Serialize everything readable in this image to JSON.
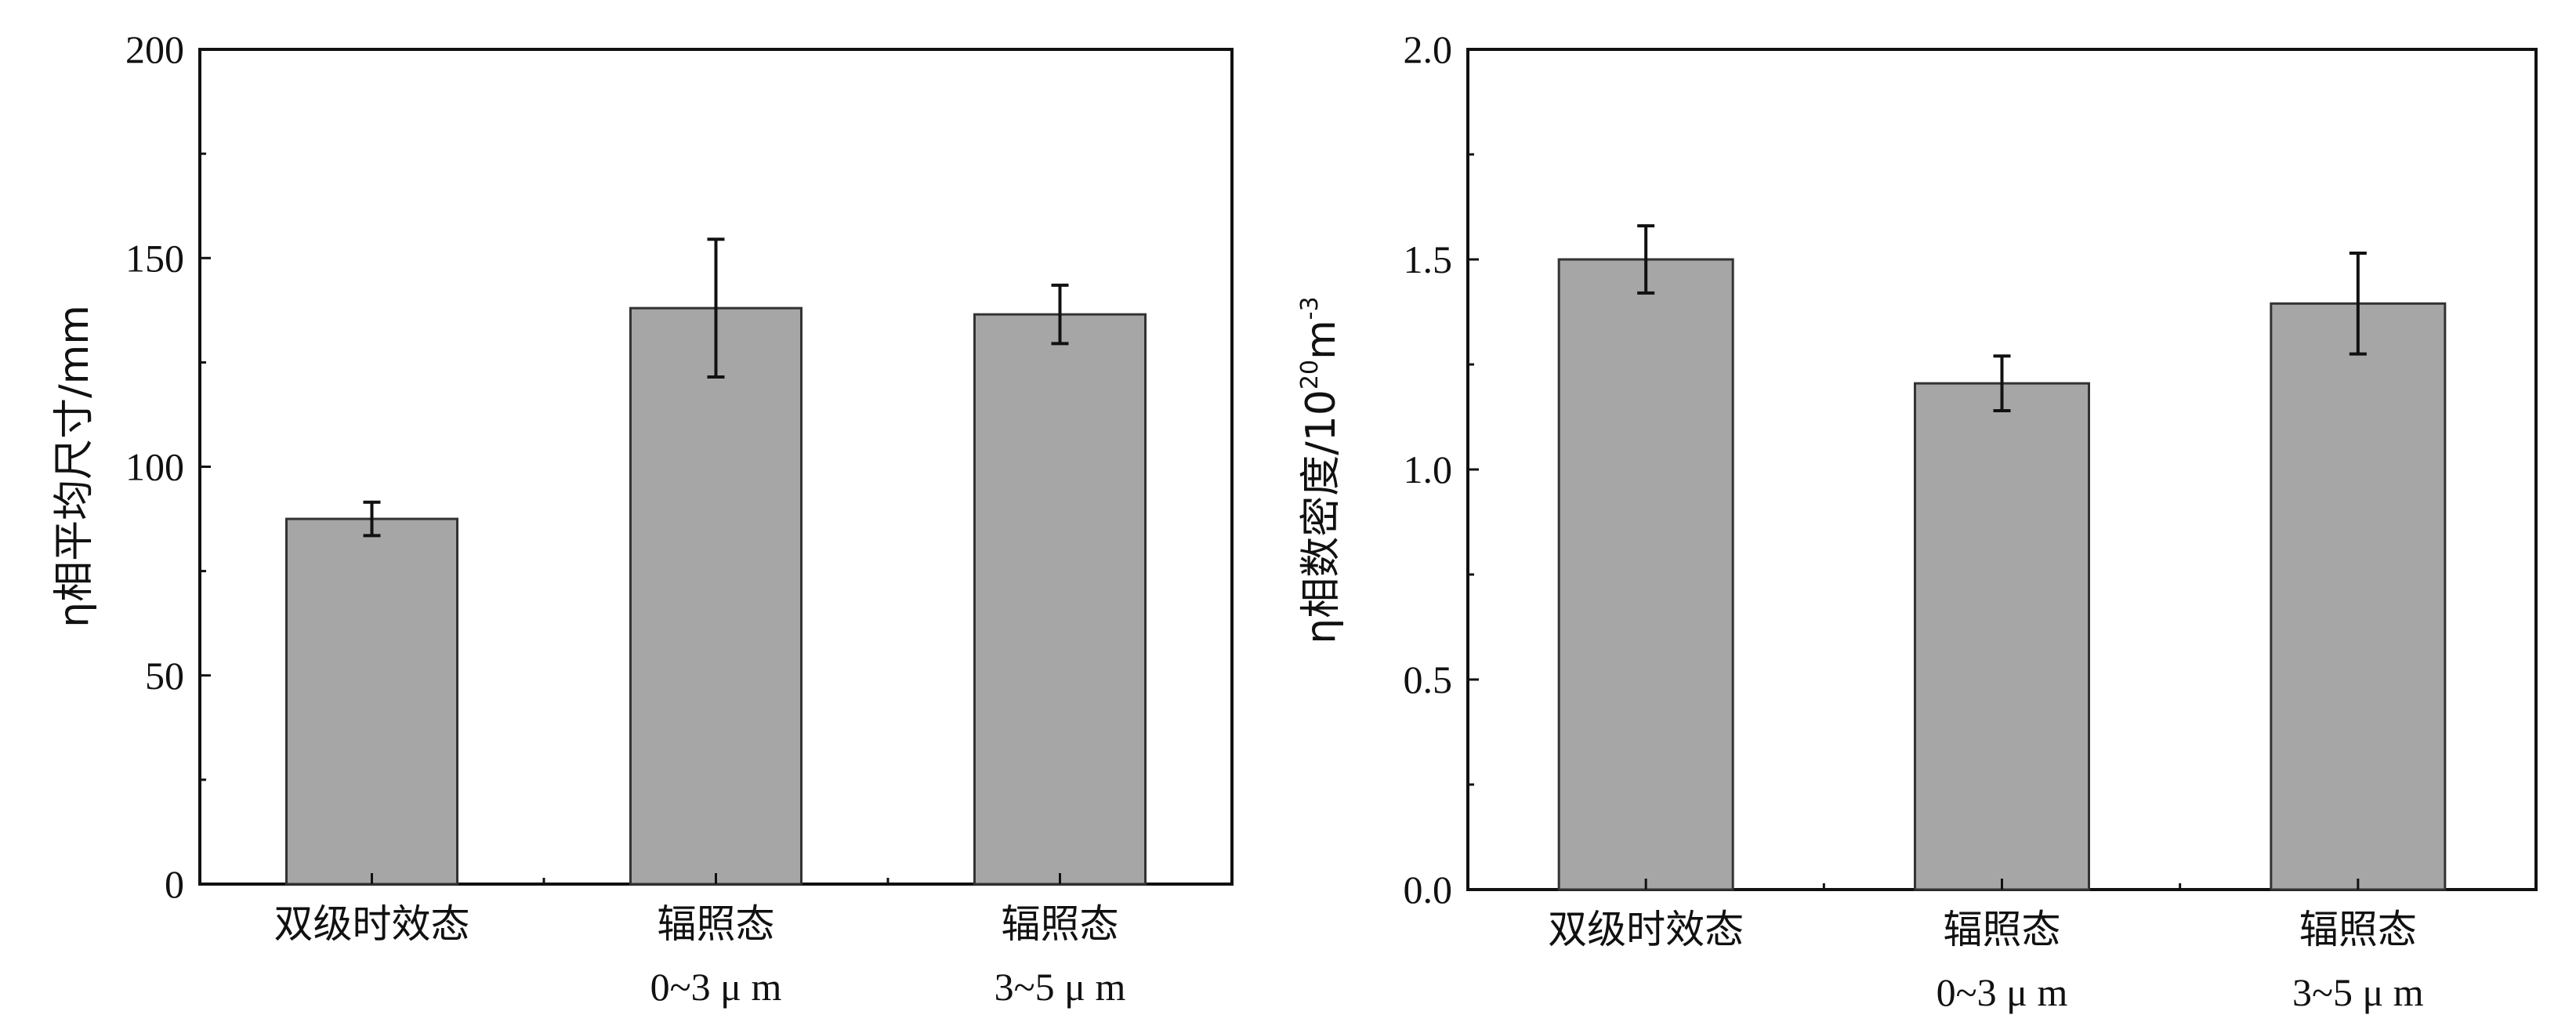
{
  "chart_data": [
    {
      "type": "bar",
      "ylabel": "η相平均尺寸/mm",
      "ylim": [
        0,
        200
      ],
      "yticks": [
        "0",
        "50",
        "100",
        "150",
        "200"
      ],
      "categories": [
        {
          "label": "双级时效态",
          "sublabel": ""
        },
        {
          "label": "辐照态",
          "sublabel": "0~3 μ m"
        },
        {
          "label": "辐照态",
          "sublabel": "3~5 μ m"
        }
      ],
      "values": [
        87.5,
        138,
        136.5
      ],
      "errors": [
        4,
        16.5,
        7
      ],
      "bar_color": "#a6a6a6",
      "grid": false
    },
    {
      "type": "bar",
      "ylabel": "η相数密度/10",
      "ylabel_sup1": "20",
      "ylabel_mid": "m",
      "ylabel_sup2": "-3",
      "ylim": [
        0,
        2.0
      ],
      "yticks": [
        "0.0",
        "0.5",
        "1.0",
        "1.5",
        "2.0"
      ],
      "categories": [
        {
          "label": "双级时效态",
          "sublabel": ""
        },
        {
          "label": "辐照态",
          "sublabel": "0~3 μ m"
        },
        {
          "label": "辐照态",
          "sublabel": "3~5 μ m"
        }
      ],
      "values": [
        1.5,
        1.205,
        1.395
      ],
      "errors": [
        0.08,
        0.065,
        0.12
      ],
      "bar_color": "#a6a6a6",
      "grid": false
    }
  ]
}
